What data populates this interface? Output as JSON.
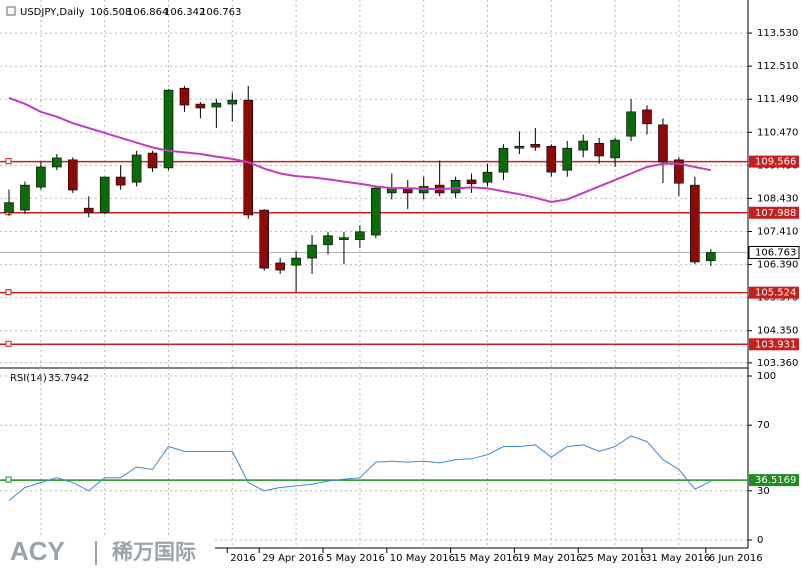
{
  "chart_data": [
    {
      "type": "candlestick",
      "title": "USDJPY,Daily",
      "categories": [
        null,
        null,
        null,
        null,
        null,
        null,
        null,
        null,
        null,
        null,
        null,
        null,
        null,
        null,
        "2016",
        null,
        "29 Apr 2016",
        null,
        null,
        null,
        "5 May 2016",
        null,
        null,
        null,
        "10 May 2016",
        null,
        null,
        null,
        "15 May 2016",
        null,
        null,
        null,
        "19 May 2016",
        null,
        null,
        null,
        "25 May 2016",
        null,
        null,
        null,
        "31 May 2016",
        null,
        null,
        null,
        "6 Jun 2016"
      ],
      "open": [
        108.0,
        108.07,
        108.78,
        109.4,
        109.62,
        108.13,
        108.0,
        109.09,
        108.93,
        109.83,
        109.37,
        111.83,
        111.34,
        111.25,
        111.34,
        111.46,
        108.07,
        106.44,
        106.37,
        106.59,
        107.0,
        107.16,
        107.16,
        107.3,
        108.6,
        108.75,
        108.6,
        108.84,
        108.6,
        109.0,
        108.93,
        109.24,
        109.98,
        110.1,
        110.04,
        109.3,
        109.92,
        110.13,
        109.68,
        110.35,
        111.16,
        110.7,
        109.62,
        108.84,
        106.508
      ],
      "high": [
        108.7,
        108.95,
        109.55,
        109.8,
        109.7,
        108.5,
        109.1,
        109.45,
        109.9,
        109.9,
        111.8,
        111.9,
        111.4,
        111.5,
        111.7,
        111.9,
        108.1,
        106.6,
        106.8,
        107.3,
        107.4,
        107.4,
        107.6,
        108.8,
        109.2,
        109.0,
        109.1,
        109.6,
        109.1,
        109.2,
        109.5,
        110.1,
        110.5,
        110.6,
        110.1,
        110.2,
        110.4,
        110.3,
        110.3,
        111.5,
        111.3,
        110.9,
        109.7,
        109.1,
        106.864
      ],
      "low": [
        107.9,
        107.95,
        108.7,
        109.3,
        108.6,
        107.85,
        107.95,
        108.7,
        108.8,
        109.25,
        109.3,
        111.1,
        110.9,
        110.6,
        110.8,
        107.8,
        106.2,
        106.1,
        105.55,
        106.1,
        106.7,
        106.4,
        106.9,
        107.2,
        108.4,
        108.1,
        108.4,
        108.5,
        108.45,
        108.6,
        108.8,
        109.0,
        109.8,
        109.9,
        109.1,
        109.1,
        109.7,
        109.5,
        109.4,
        110.2,
        110.4,
        108.9,
        108.5,
        106.4,
        106.342
      ],
      "close": [
        108.3,
        108.84,
        109.4,
        109.68,
        108.69,
        108.0,
        109.09,
        108.84,
        109.77,
        109.37,
        111.77,
        111.31,
        111.22,
        111.37,
        111.46,
        107.92,
        106.28,
        106.22,
        106.59,
        106.99,
        107.28,
        107.22,
        107.4,
        108.75,
        108.75,
        108.6,
        108.8,
        108.6,
        108.99,
        108.88,
        109.24,
        109.98,
        110.04,
        110.01,
        109.24,
        109.98,
        110.2,
        109.74,
        110.23,
        111.1,
        110.73,
        109.55,
        108.9,
        106.47,
        106.763
      ],
      "up_color": "#0b6b0b",
      "down_color": "#8b0a0a",
      "ma": {
        "color": "#c03cc0",
        "values": [
          111.53,
          111.35,
          111.1,
          110.95,
          110.75,
          110.6,
          110.45,
          110.3,
          110.15,
          110.0,
          109.9,
          109.85,
          109.8,
          109.72,
          109.65,
          109.55,
          109.35,
          109.2,
          109.12,
          109.08,
          109.02,
          108.95,
          108.88,
          108.8,
          108.75,
          108.75,
          108.72,
          108.72,
          108.74,
          108.77,
          108.74,
          108.65,
          108.56,
          108.45,
          108.32,
          108.4,
          108.6,
          108.8,
          109.0,
          109.2,
          109.4,
          109.5,
          109.5,
          109.4,
          109.3
        ]
      },
      "levels": [
        {
          "value": 109.566,
          "color": "#c81e1e"
        },
        {
          "value": 107.988,
          "color": "#c81e1e"
        },
        {
          "value": 105.524,
          "color": "#c81e1e"
        },
        {
          "value": 103.931,
          "color": "#c81e1e"
        }
      ],
      "ylim": [
        103.2,
        114.55
      ],
      "yticks": [
        {
          "value": 113.53,
          "label": "113.530"
        },
        {
          "value": 112.51,
          "label": "112.510"
        },
        {
          "value": 111.49,
          "label": "111.490"
        },
        {
          "value": 110.47,
          "label": "110.470"
        },
        {
          "value": 109.45,
          "label": "109.450"
        },
        {
          "value": 108.43,
          "label": "108.430"
        },
        {
          "value": 107.41,
          "label": "107.410"
        },
        {
          "value": 106.39,
          "label": "106.390"
        },
        {
          "value": 105.37,
          "label": "105.370"
        },
        {
          "value": 104.35,
          "label": "104.350"
        },
        {
          "value": 103.36,
          "label": "103.360"
        }
      ],
      "grid": true
    },
    {
      "type": "line",
      "title": "RSI(14)",
      "series": [
        {
          "color": "#3c8ad0",
          "values": [
            24,
            32,
            35,
            38,
            35,
            30,
            38,
            38,
            44.5,
            43,
            57,
            54,
            54,
            54,
            54,
            35,
            30,
            32,
            33,
            34,
            36,
            37,
            38,
            47.5,
            48,
            47.5,
            48,
            47,
            49,
            49.5,
            52,
            57,
            57,
            58,
            50.5,
            57,
            58,
            54,
            57,
            63.5,
            60,
            49,
            43,
            31,
            35.7942
          ]
        }
      ],
      "levels": [
        {
          "value": 36.5169,
          "color": "#1e8c1e"
        }
      ],
      "ylim": [
        -4.9,
        104.9
      ],
      "yticks": [
        100,
        70,
        30,
        0
      ],
      "grid": true
    }
  ],
  "watermark": {
    "brand": "ACY",
    "name": "稀万国际"
  }
}
